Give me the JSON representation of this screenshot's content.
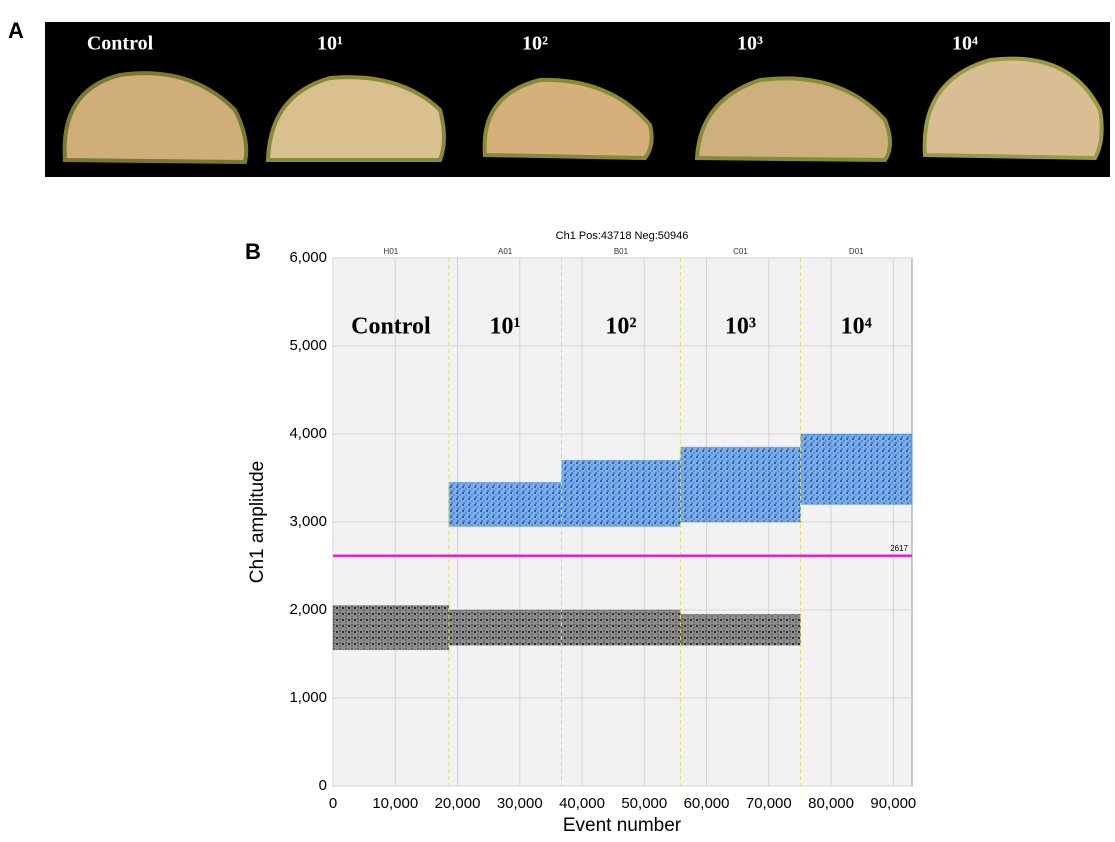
{
  "panel_a": {
    "label": "A",
    "samples": [
      "Control",
      "10¹",
      "10²",
      "10³",
      "10⁴"
    ]
  },
  "chart_data": {
    "type": "scatter",
    "panel_label": "B",
    "title": "Ch1 Pos:43718 Neg:50946",
    "x_label": "Event number",
    "y_label": "Ch1 amplitude",
    "xlim": [
      0,
      93000
    ],
    "ylim": [
      0,
      6000
    ],
    "xticks": [
      0,
      {
        "value": 10000,
        "label": "10,000"
      },
      {
        "value": 20000,
        "label": "20,000"
      },
      {
        "value": 30000,
        "label": "30,000"
      },
      {
        "value": 40000,
        "label": "40,000"
      },
      {
        "value": 50000,
        "label": "50,000"
      },
      {
        "value": 60000,
        "label": "60,000"
      },
      {
        "value": 70000,
        "label": "70,000"
      },
      {
        "value": 80000,
        "label": "80,000"
      },
      {
        "value": 90000,
        "label": "90,000"
      }
    ],
    "yticks": [
      0,
      {
        "value": 1000,
        "label": "1,000"
      },
      {
        "value": 2000,
        "label": "2,000"
      },
      {
        "value": 3000,
        "label": "3,000"
      },
      {
        "value": 4000,
        "label": "4,000"
      },
      {
        "value": 5000,
        "label": "5,000"
      },
      {
        "value": 6000,
        "label": "6,000"
      }
    ],
    "grid": true,
    "positive_color": "#1f72d8",
    "negative_color": "#3a3a3a",
    "threshold": {
      "value": 2617,
      "label": "2617",
      "color": "#e020e0"
    },
    "wells": [
      {
        "name": "H01",
        "label": "Control",
        "x": [
          0,
          18600
        ],
        "pos": null,
        "neg": [
          1550,
          2050
        ]
      },
      {
        "name": "A01",
        "label": "10¹",
        "x": [
          18600,
          36700
        ],
        "pos": [
          2950,
          3450
        ],
        "neg": [
          1600,
          2000
        ]
      },
      {
        "name": "B01",
        "label": "10²",
        "x": [
          36700,
          55800
        ],
        "pos": [
          2950,
          3700
        ],
        "neg": [
          1600,
          2000
        ]
      },
      {
        "name": "C01",
        "label": "10³",
        "x": [
          55800,
          75100
        ],
        "pos": [
          3000,
          3850
        ],
        "neg": [
          1600,
          1950
        ]
      },
      {
        "name": "D01",
        "label": "10⁴",
        "x": [
          75100,
          93000
        ],
        "pos": [
          3200,
          4000
        ],
        "neg": null
      }
    ]
  }
}
